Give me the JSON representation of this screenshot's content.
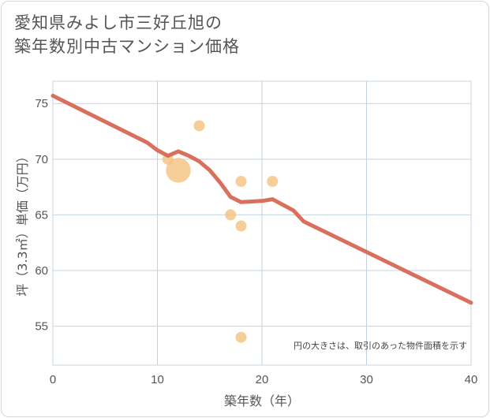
{
  "header": {
    "title_line1": "愛知県みよし市三好丘旭の",
    "title_line2": "築年数別中古マンション価格"
  },
  "chart_data": {
    "type": "scatter",
    "xlabel": "築年数（年）",
    "ylabel": "坪（3.3㎡）単価（万円）",
    "xlim": [
      0,
      40
    ],
    "ylim": [
      51.5,
      77
    ],
    "x_ticks": [
      0,
      10,
      20,
      30,
      40
    ],
    "y_ticks": [
      55,
      60,
      65,
      70,
      75
    ],
    "grid": true,
    "note": "円の大きさは、取引のあった物件面積を示す",
    "colors": {
      "points": "#f5c17e",
      "line": "#d9705e",
      "grid": "#c5d3df"
    },
    "points": [
      {
        "x": 11,
        "y": 70,
        "size": 1
      },
      {
        "x": 12,
        "y": 69,
        "size": 5
      },
      {
        "x": 14,
        "y": 73,
        "size": 1
      },
      {
        "x": 17,
        "y": 65,
        "size": 1
      },
      {
        "x": 18,
        "y": 68,
        "size": 1
      },
      {
        "x": 18,
        "y": 64,
        "size": 1
      },
      {
        "x": 18,
        "y": 54,
        "size": 1
      },
      {
        "x": 21,
        "y": 68,
        "size": 1
      }
    ],
    "trend_line": {
      "x": [
        0,
        9,
        10,
        11,
        12,
        13,
        14,
        15,
        16,
        17,
        18,
        19,
        20,
        21,
        22,
        23,
        24,
        40
      ],
      "y": [
        75.7,
        71.5,
        70.8,
        70.3,
        70.7,
        70.3,
        69.8,
        69.0,
        67.9,
        66.6,
        66.15,
        66.2,
        66.25,
        66.4,
        65.9,
        65.4,
        64.4,
        57.1
      ]
    }
  }
}
